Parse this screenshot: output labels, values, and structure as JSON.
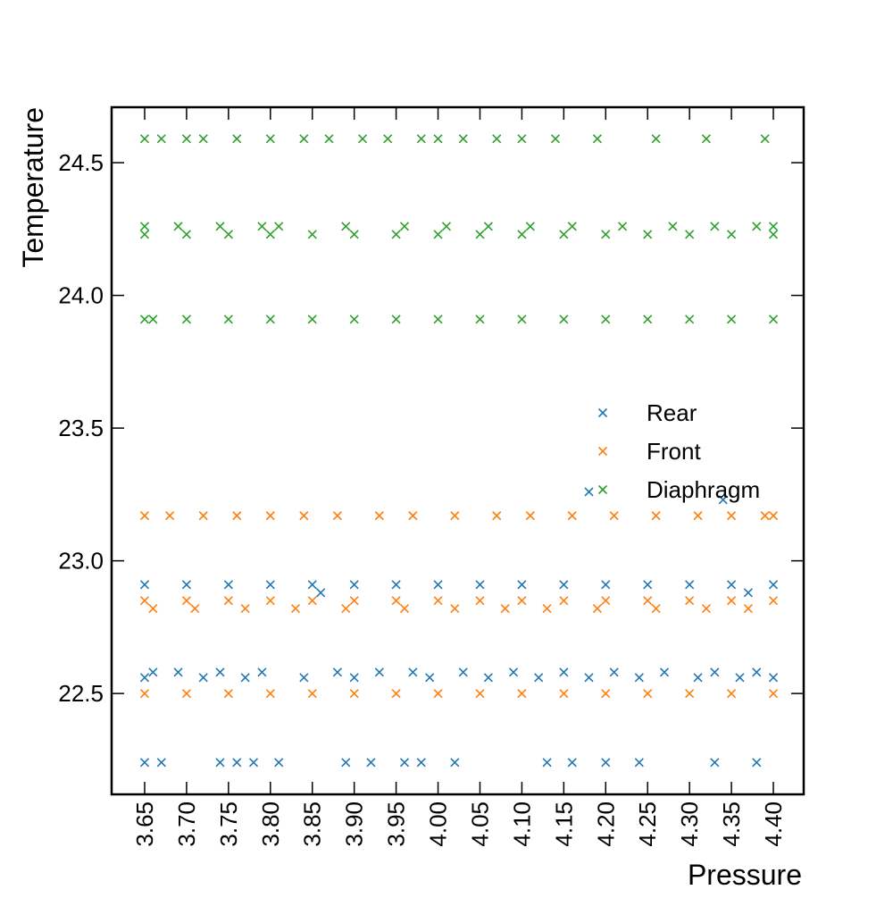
{
  "chart_data": {
    "type": "scatter",
    "xlabel": "Pressure",
    "ylabel": "Temperature",
    "xlim": [
      3.6106,
      4.4362
    ],
    "ylim": [
      22.12,
      24.709
    ],
    "xticks": [
      3.65,
      {
        "value": 3.7,
        "label": "3.70"
      },
      3.75,
      {
        "value": 3.8,
        "label": "3.80"
      },
      3.85,
      {
        "value": 3.9,
        "label": "3.90"
      },
      3.95,
      {
        "value": 4.0,
        "label": "4.00"
      },
      4.05,
      {
        "value": 4.1,
        "label": "4.10"
      },
      4.15,
      {
        "value": 4.2,
        "label": "4.20"
      },
      4.25,
      {
        "value": 4.3,
        "label": "4.30"
      },
      4.35,
      {
        "value": 4.4,
        "label": "4.40"
      }
    ],
    "yticks": [
      22.5,
      {
        "value": 23.0,
        "label": "23.0"
      },
      23.5,
      {
        "value": 24.0,
        "label": "24.0"
      },
      24.5
    ],
    "legend": "center right",
    "series": [
      {
        "name": "Rear",
        "color": "#1f77b4",
        "x": [
          3.65,
          3.7,
          3.75,
          3.8,
          3.85,
          3.9,
          3.95,
          4.0,
          4.05,
          4.1,
          4.15,
          4.2,
          4.25,
          4.3,
          4.35,
          4.4,
          3.66,
          3.69,
          3.74,
          3.79,
          3.88,
          3.93,
          3.97,
          4.03,
          4.09,
          4.15,
          4.21,
          4.27,
          4.33,
          4.38,
          3.65,
          3.72,
          3.77,
          3.84,
          3.9,
          3.99,
          4.06,
          4.12,
          4.18,
          4.24,
          4.31,
          4.36,
          4.4,
          3.65,
          3.67,
          3.74,
          3.76,
          3.78,
          3.81,
          3.89,
          3.92,
          3.96,
          3.98,
          4.02,
          4.13,
          4.16,
          4.2,
          4.24,
          4.33,
          4.38,
          3.86,
          4.37,
          4.18,
          4.34
        ],
        "y": [
          22.91,
          22.91,
          22.91,
          22.91,
          22.91,
          22.91,
          22.91,
          22.91,
          22.91,
          22.91,
          22.91,
          22.91,
          22.91,
          22.91,
          22.91,
          22.91,
          22.58,
          22.58,
          22.58,
          22.58,
          22.58,
          22.58,
          22.58,
          22.58,
          22.58,
          22.58,
          22.58,
          22.58,
          22.58,
          22.58,
          22.56,
          22.56,
          22.56,
          22.56,
          22.56,
          22.56,
          22.56,
          22.56,
          22.56,
          22.56,
          22.56,
          22.56,
          22.56,
          22.24,
          22.24,
          22.24,
          22.24,
          22.24,
          22.24,
          22.24,
          22.24,
          22.24,
          22.24,
          22.24,
          22.24,
          22.24,
          22.24,
          22.24,
          22.24,
          22.24,
          22.88,
          22.88,
          23.26,
          23.23
        ]
      },
      {
        "name": "Front",
        "color": "#ff7f0e",
        "x": [
          3.65,
          3.68,
          3.72,
          3.76,
          3.8,
          3.84,
          3.88,
          3.93,
          3.97,
          4.02,
          4.07,
          4.11,
          4.16,
          4.21,
          4.26,
          4.31,
          4.35,
          4.39,
          4.4,
          3.65,
          3.7,
          3.75,
          3.8,
          3.85,
          3.9,
          3.95,
          4.0,
          4.05,
          4.1,
          4.15,
          4.2,
          4.25,
          4.3,
          4.35,
          4.4,
          3.66,
          3.71,
          3.77,
          3.83,
          3.89,
          3.96,
          4.02,
          4.08,
          4.13,
          4.19,
          4.26,
          4.32,
          4.37,
          3.65,
          3.7,
          3.75,
          3.8,
          3.85,
          3.9,
          3.95,
          4.0,
          4.05,
          4.1,
          4.15,
          4.2,
          4.25,
          4.3,
          4.35,
          4.4
        ],
        "y": [
          23.17,
          23.17,
          23.17,
          23.17,
          23.17,
          23.17,
          23.17,
          23.17,
          23.17,
          23.17,
          23.17,
          23.17,
          23.17,
          23.17,
          23.17,
          23.17,
          23.17,
          23.17,
          23.17,
          22.85,
          22.85,
          22.85,
          22.85,
          22.85,
          22.85,
          22.85,
          22.85,
          22.85,
          22.85,
          22.85,
          22.85,
          22.85,
          22.85,
          22.85,
          22.85,
          22.82,
          22.82,
          22.82,
          22.82,
          22.82,
          22.82,
          22.82,
          22.82,
          22.82,
          22.82,
          22.82,
          22.82,
          22.82,
          22.5,
          22.5,
          22.5,
          22.5,
          22.5,
          22.5,
          22.5,
          22.5,
          22.5,
          22.5,
          22.5,
          22.5,
          22.5,
          22.5,
          22.5,
          22.5
        ]
      },
      {
        "name": "Diaphragm",
        "color": "#2ca02c",
        "x": [
          3.65,
          3.67,
          3.7,
          3.72,
          3.76,
          3.8,
          3.84,
          3.87,
          3.91,
          3.94,
          3.98,
          4.0,
          4.03,
          4.07,
          4.1,
          4.14,
          4.19,
          4.26,
          4.32,
          4.39,
          3.65,
          3.69,
          3.74,
          3.79,
          3.81,
          3.89,
          3.96,
          4.01,
          4.06,
          4.11,
          4.16,
          4.22,
          4.28,
          4.33,
          4.38,
          4.4,
          3.65,
          3.7,
          3.75,
          3.8,
          3.85,
          3.9,
          3.95,
          4.0,
          4.05,
          4.1,
          4.15,
          4.2,
          4.25,
          4.3,
          4.35,
          4.4,
          3.65,
          3.66,
          3.7,
          3.75,
          3.8,
          3.85,
          3.9,
          3.95,
          4.0,
          4.05,
          4.1,
          4.15,
          4.2,
          4.25,
          4.3,
          4.35,
          4.4
        ],
        "y": [
          24.59,
          24.59,
          24.59,
          24.59,
          24.59,
          24.59,
          24.59,
          24.59,
          24.59,
          24.59,
          24.59,
          24.59,
          24.59,
          24.59,
          24.59,
          24.59,
          24.59,
          24.59,
          24.59,
          24.59,
          24.26,
          24.26,
          24.26,
          24.26,
          24.26,
          24.26,
          24.26,
          24.26,
          24.26,
          24.26,
          24.26,
          24.26,
          24.26,
          24.26,
          24.26,
          24.26,
          24.23,
          24.23,
          24.23,
          24.23,
          24.23,
          24.23,
          24.23,
          24.23,
          24.23,
          24.23,
          24.23,
          24.23,
          24.23,
          24.23,
          24.23,
          24.23,
          23.91,
          23.91,
          23.91,
          23.91,
          23.91,
          23.91,
          23.91,
          23.91,
          23.91,
          23.91,
          23.91,
          23.91,
          23.91,
          23.91,
          23.91,
          23.91,
          23.91
        ]
      }
    ]
  }
}
